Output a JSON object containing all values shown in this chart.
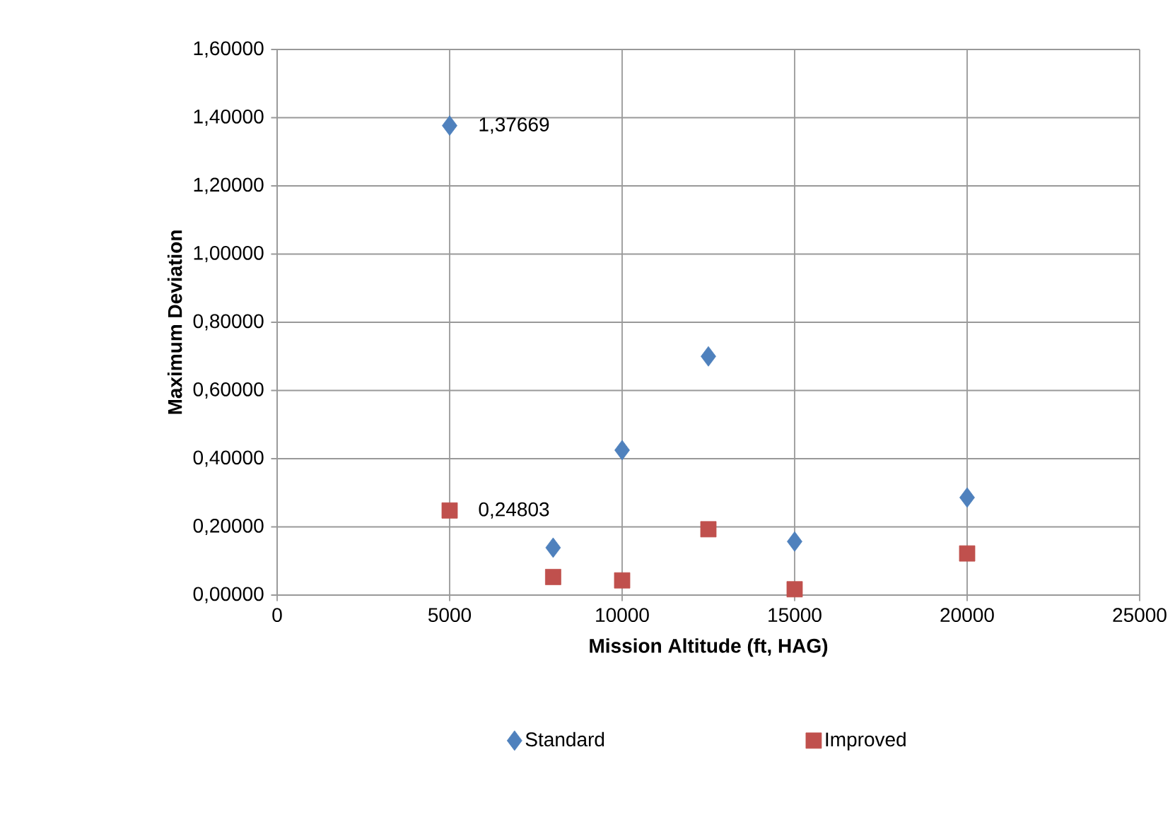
{
  "chart_data": {
    "type": "scatter",
    "xlabel": "Mission Altitude (ft, HAG)",
    "ylabel": "Maximum Deviation",
    "series": [
      {
        "name": "Standard",
        "color": "#4f81bd",
        "marker": "diamond",
        "x": [
          5000,
          8000,
          10000,
          12500,
          15000,
          20000
        ],
        "values": [
          1.37669,
          0.139,
          0.425,
          0.7,
          0.157,
          0.286
        ],
        "value_labels": [
          "1,37669",
          null,
          null,
          null,
          null,
          null
        ]
      },
      {
        "name": "Improved",
        "color": "#c0504d",
        "marker": "square",
        "x": [
          5000,
          8000,
          10000,
          12500,
          15000,
          20000
        ],
        "values": [
          0.24803,
          0.053,
          0.043,
          0.193,
          0.017,
          0.122
        ],
        "value_labels": [
          "0,24803",
          null,
          null,
          null,
          null,
          null
        ]
      }
    ],
    "xlim": [
      0,
      25000
    ],
    "xticks": [
      0,
      5000,
      10000,
      15000,
      20000,
      25000
    ],
    "ylim": [
      0,
      1.6
    ],
    "yticks": [
      {
        "value": 0,
        "label": "0,00000"
      },
      {
        "value": 0.2,
        "label": "0,20000"
      },
      {
        "value": 0.4,
        "label": "0,40000"
      },
      {
        "value": 0.6,
        "label": "0,60000"
      },
      {
        "value": 0.8,
        "label": "0,80000"
      },
      {
        "value": 1.0,
        "label": "1,00000"
      },
      {
        "value": 1.2,
        "label": "1,20000"
      },
      {
        "value": 1.4,
        "label": "1,40000"
      },
      {
        "value": 1.6,
        "label": "1,60000"
      }
    ],
    "grid": true,
    "legend": "bottom"
  }
}
